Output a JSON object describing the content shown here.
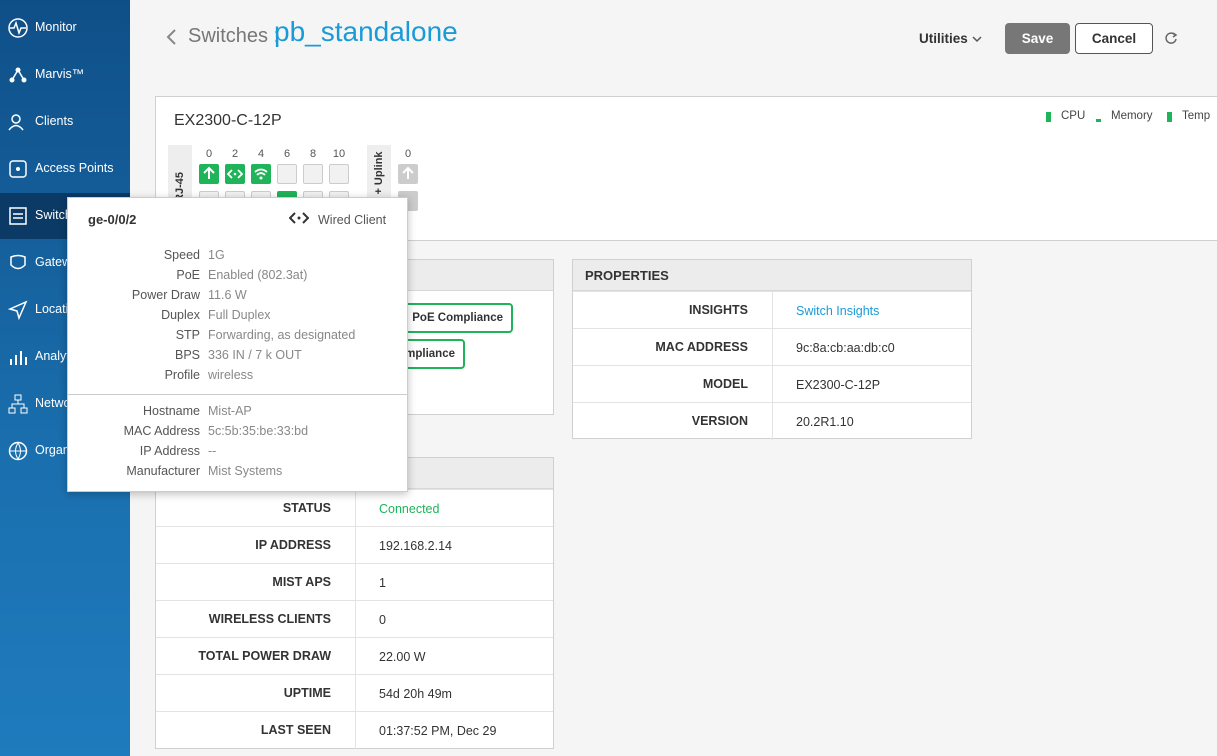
{
  "sidebar": {
    "items": [
      "Monitor",
      "Marvis™",
      "Clients",
      "Access Points",
      "Switch",
      "Gatew",
      "Locati",
      "Analyt",
      "Netwo",
      "Organ"
    ]
  },
  "header": {
    "breadcrumb": "Switches :",
    "title": "pb_standalone",
    "utilities": "Utilities",
    "save": "Save",
    "cancel": "Cancel"
  },
  "device": {
    "model": "EX2300-C-12P",
    "legend": [
      "CPU",
      "Memory",
      "Temp"
    ],
    "rj45_label": "RJ-45",
    "port_numbers": [
      "0",
      "2",
      "4",
      "6",
      "8",
      "10"
    ],
    "uplink_label": "+ Uplink",
    "uplink_numbers": [
      "0"
    ]
  },
  "compliance": {
    "buttons": [
      "PoE Compliance",
      "mpliance"
    ]
  },
  "properties": {
    "title": "PROPERTIES",
    "rows": [
      [
        "INSIGHTS",
        "Switch Insights"
      ],
      [
        "MAC ADDRESS",
        "9c:8a:cb:aa:db:c0"
      ],
      [
        "MODEL",
        "EX2300-C-12P"
      ],
      [
        "VERSION",
        "20.2R1.10"
      ]
    ]
  },
  "status": {
    "rows": [
      [
        "STATUS",
        "Connected"
      ],
      [
        "IP ADDRESS",
        "192.168.2.14"
      ],
      [
        "MIST APS",
        "1"
      ],
      [
        "WIRELESS CLIENTS",
        "0"
      ],
      [
        "TOTAL POWER DRAW",
        "22.00 W"
      ],
      [
        "UPTIME",
        "54d 20h 49m"
      ],
      [
        "LAST SEEN",
        "01:37:52 PM, Dec 29"
      ]
    ]
  },
  "tooltip": {
    "port": "ge-0/0/2",
    "client_type": "Wired Client",
    "port_rows": [
      [
        "Speed",
        "1G"
      ],
      [
        "PoE",
        "Enabled (802.3at)"
      ],
      [
        "Power Draw",
        "11.6 W"
      ],
      [
        "Duplex",
        "Full Duplex"
      ],
      [
        "STP",
        "Forwarding, as designated"
      ],
      [
        "BPS",
        "336 IN / 7 k OUT"
      ],
      [
        "Profile",
        "wireless"
      ]
    ],
    "client_rows": [
      [
        "Hostname",
        "Mist-AP"
      ],
      [
        "MAC Address",
        "5c:5b:35:be:33:bd"
      ],
      [
        "IP Address",
        "--"
      ],
      [
        "Manufacturer",
        "Mist Systems"
      ]
    ]
  }
}
